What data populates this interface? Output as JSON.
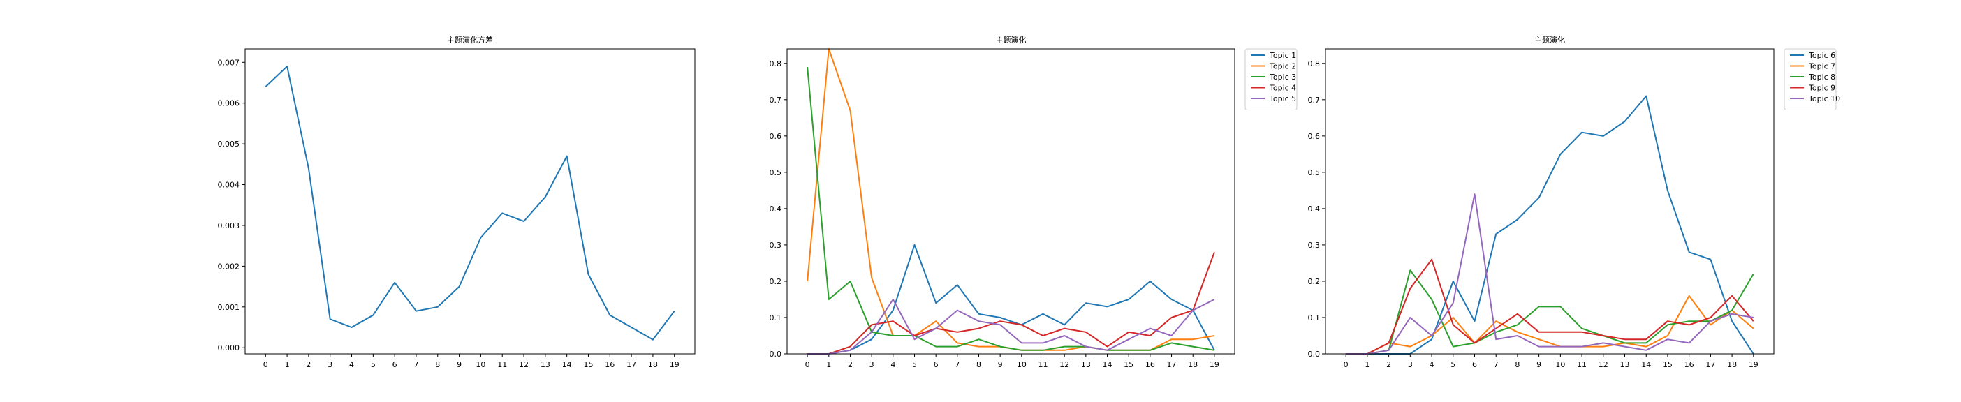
{
  "chart_data": [
    {
      "type": "line",
      "title": "主题演化方差",
      "xlabel": "",
      "ylabel": "",
      "x": [
        0,
        1,
        2,
        3,
        4,
        5,
        6,
        7,
        8,
        9,
        10,
        11,
        12,
        13,
        14,
        15,
        16,
        17,
        18,
        19
      ],
      "xticks": [
        "0",
        "1",
        "2",
        "3",
        "4",
        "5",
        "6",
        "7",
        "8",
        "9",
        "10",
        "11",
        "12",
        "13",
        "14",
        "15",
        "16",
        "17",
        "18",
        "19"
      ],
      "ylim": [
        -0.00015,
        0.00733
      ],
      "yticks": [
        "0.000",
        "0.001",
        "0.002",
        "0.003",
        "0.004",
        "0.005",
        "0.006",
        "0.007"
      ],
      "grid": false,
      "series": [
        {
          "name": "",
          "color": "#1f77b4",
          "values": [
            0.0064,
            0.0069,
            0.0044,
            0.0007,
            0.0005,
            0.0008,
            0.0016,
            0.0009,
            0.001,
            0.0015,
            0.0027,
            0.0033,
            0.0031,
            0.0037,
            0.0047,
            0.0018,
            0.0008,
            0.0005,
            0.0002,
            0.0009
          ]
        }
      ]
    },
    {
      "type": "line",
      "title": "主题演化",
      "xlabel": "",
      "ylabel": "",
      "x": [
        0,
        1,
        2,
        3,
        4,
        5,
        6,
        7,
        8,
        9,
        10,
        11,
        12,
        13,
        14,
        15,
        16,
        17,
        18,
        19
      ],
      "xticks": [
        "0",
        "1",
        "2",
        "3",
        "4",
        "5",
        "6",
        "7",
        "8",
        "9",
        "10",
        "11",
        "12",
        "13",
        "14",
        "15",
        "16",
        "17",
        "18",
        "19"
      ],
      "ylim": [
        0,
        0.84
      ],
      "yticks": [
        "0.0",
        "0.1",
        "0.2",
        "0.3",
        "0.4",
        "0.5",
        "0.6",
        "0.7",
        "0.8"
      ],
      "grid": false,
      "legend": "outside-top-right",
      "series": [
        {
          "name": "Topic 1",
          "color": "#1f77b4",
          "values": [
            0,
            0,
            0.01,
            0.04,
            0.12,
            0.3,
            0.14,
            0.19,
            0.11,
            0.1,
            0.08,
            0.11,
            0.08,
            0.14,
            0.13,
            0.15,
            0.2,
            0.15,
            0.12,
            0.01
          ]
        },
        {
          "name": "Topic 2",
          "color": "#ff7f0e",
          "values": [
            0.2,
            0.84,
            0.67,
            0.21,
            0.05,
            0.05,
            0.09,
            0.03,
            0.02,
            0.02,
            0.01,
            0.01,
            0.01,
            0.02,
            0.01,
            0.01,
            0.01,
            0.04,
            0.04,
            0.05
          ]
        },
        {
          "name": "Topic 3",
          "color": "#2ca02c",
          "values": [
            0.79,
            0.15,
            0.2,
            0.06,
            0.05,
            0.05,
            0.02,
            0.02,
            0.04,
            0.02,
            0.01,
            0.01,
            0.02,
            0.02,
            0.01,
            0.01,
            0.01,
            0.03,
            0.02,
            0.01
          ]
        },
        {
          "name": "Topic 4",
          "color": "#d62728",
          "values": [
            0,
            0,
            0.02,
            0.08,
            0.09,
            0.05,
            0.07,
            0.06,
            0.07,
            0.09,
            0.08,
            0.05,
            0.07,
            0.06,
            0.02,
            0.06,
            0.05,
            0.1,
            0.12,
            0.28
          ]
        },
        {
          "name": "Topic 5",
          "color": "#9467bd",
          "values": [
            0,
            0,
            0.01,
            0.06,
            0.15,
            0.04,
            0.07,
            0.12,
            0.09,
            0.08,
            0.03,
            0.03,
            0.05,
            0.02,
            0.01,
            0.04,
            0.07,
            0.05,
            0.12,
            0.15
          ]
        }
      ]
    },
    {
      "type": "line",
      "title": "主题演化",
      "xlabel": "",
      "ylabel": "",
      "x": [
        0,
        1,
        2,
        3,
        4,
        5,
        6,
        7,
        8,
        9,
        10,
        11,
        12,
        13,
        14,
        15,
        16,
        17,
        18,
        19
      ],
      "xticks": [
        "0",
        "1",
        "2",
        "3",
        "4",
        "5",
        "6",
        "7",
        "8",
        "9",
        "10",
        "11",
        "12",
        "13",
        "14",
        "15",
        "16",
        "17",
        "18",
        "19"
      ],
      "ylim": [
        0,
        0.84
      ],
      "yticks": [
        "0.0",
        "0.1",
        "0.2",
        "0.3",
        "0.4",
        "0.5",
        "0.6",
        "0.7",
        "0.8"
      ],
      "grid": false,
      "legend": "outside-top-right",
      "series": [
        {
          "name": "Topic 6",
          "color": "#1f77b4",
          "values": [
            0,
            0,
            0,
            0,
            0.04,
            0.2,
            0.09,
            0.33,
            0.37,
            0.43,
            0.55,
            0.61,
            0.6,
            0.64,
            0.71,
            0.45,
            0.28,
            0.26,
            0.09,
            0
          ]
        },
        {
          "name": "Topic 7",
          "color": "#ff7f0e",
          "values": [
            0,
            0,
            0.03,
            0.02,
            0.05,
            0.1,
            0.03,
            0.09,
            0.06,
            0.04,
            0.02,
            0.02,
            0.02,
            0.03,
            0.02,
            0.05,
            0.16,
            0.08,
            0.12,
            0.07
          ]
        },
        {
          "name": "Topic 8",
          "color": "#2ca02c",
          "values": [
            0,
            0,
            0.01,
            0.23,
            0.15,
            0.02,
            0.03,
            0.06,
            0.08,
            0.13,
            0.13,
            0.07,
            0.05,
            0.03,
            0.03,
            0.08,
            0.09,
            0.09,
            0.12,
            0.22
          ]
        },
        {
          "name": "Topic 9",
          "color": "#d62728",
          "values": [
            0,
            0,
            0.03,
            0.18,
            0.26,
            0.08,
            0.03,
            0.07,
            0.11,
            0.06,
            0.06,
            0.06,
            0.05,
            0.04,
            0.04,
            0.09,
            0.08,
            0.1,
            0.16,
            0.09
          ]
        },
        {
          "name": "Topic 10",
          "color": "#9467bd",
          "values": [
            0,
            0,
            0.01,
            0.1,
            0.05,
            0.14,
            0.44,
            0.04,
            0.05,
            0.02,
            0.02,
            0.02,
            0.03,
            0.02,
            0.01,
            0.04,
            0.03,
            0.09,
            0.11,
            0.1
          ]
        }
      ]
    }
  ]
}
